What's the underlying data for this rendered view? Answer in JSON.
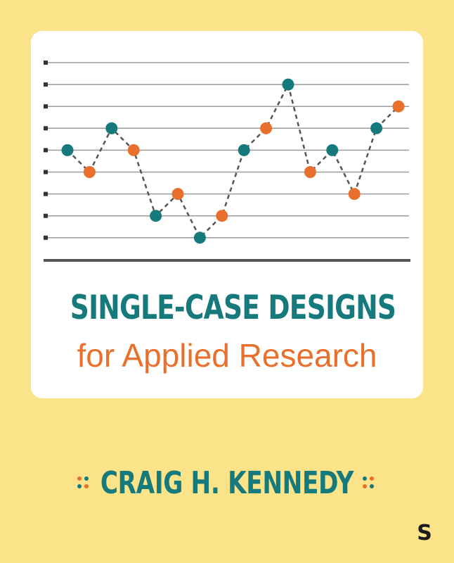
{
  "cover": {
    "title": "SINGLE-CASE DESIGNS",
    "subtitle": "for Applied Research",
    "author": "CRAIG H. KENNEDY",
    "publisher_logo": "S"
  },
  "colors": {
    "background": "#FBE38A",
    "teal": "#167A7C",
    "orange": "#E8702C",
    "gridline": "#9a9a9a",
    "axis": "#555555"
  },
  "chart_data": {
    "type": "line",
    "grid": true,
    "line_style": "dashed",
    "levels": 9,
    "points": [
      {
        "x": 1,
        "y": 5,
        "color": "teal"
      },
      {
        "x": 2,
        "y": 4,
        "color": "orange"
      },
      {
        "x": 3,
        "y": 6,
        "color": "teal"
      },
      {
        "x": 4,
        "y": 5,
        "color": "orange"
      },
      {
        "x": 5,
        "y": 2,
        "color": "teal"
      },
      {
        "x": 6,
        "y": 3,
        "color": "orange"
      },
      {
        "x": 7,
        "y": 1,
        "color": "teal"
      },
      {
        "x": 8,
        "y": 2,
        "color": "orange"
      },
      {
        "x": 9,
        "y": 5,
        "color": "teal"
      },
      {
        "x": 10,
        "y": 6,
        "color": "orange"
      },
      {
        "x": 11,
        "y": 8,
        "color": "teal"
      },
      {
        "x": 12,
        "y": 4,
        "color": "orange"
      },
      {
        "x": 13,
        "y": 5,
        "color": "teal"
      },
      {
        "x": 14,
        "y": 3,
        "color": "orange"
      },
      {
        "x": 15,
        "y": 6,
        "color": "teal"
      },
      {
        "x": 16,
        "y": 7,
        "color": "orange"
      }
    ]
  }
}
